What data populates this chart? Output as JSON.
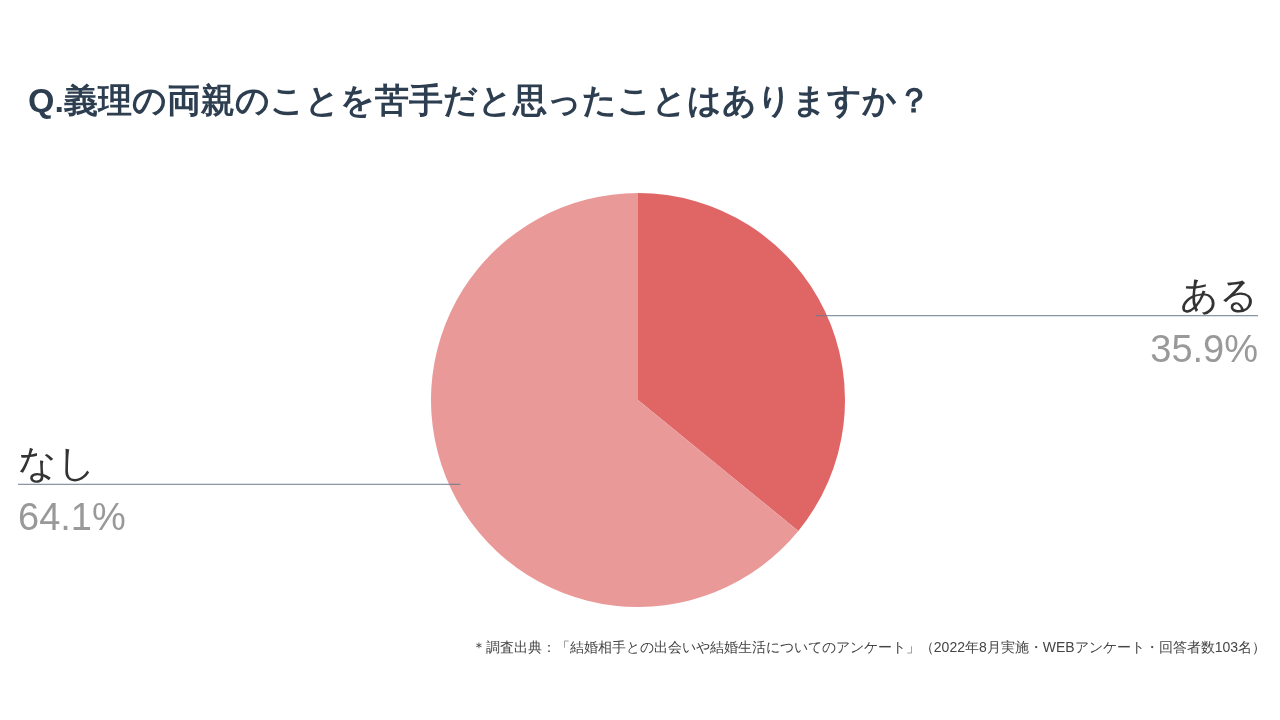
{
  "chart_data": {
    "type": "pie",
    "title": "Q.義理の両親のことを苦手だと思ったことはありますか？",
    "categories": [
      "ある",
      "なし"
    ],
    "values": [
      35.9,
      64.1
    ],
    "colors": [
      "#e06666",
      "#ea9999"
    ],
    "value_labels": [
      "35.9%",
      "64.1%"
    ],
    "annotations": [
      "＊調査出典：「結婚相手との出会いや結婚生活についてのアンケート」（2022年8月実施・WEBアンケート・回答者数103名）"
    ]
  }
}
